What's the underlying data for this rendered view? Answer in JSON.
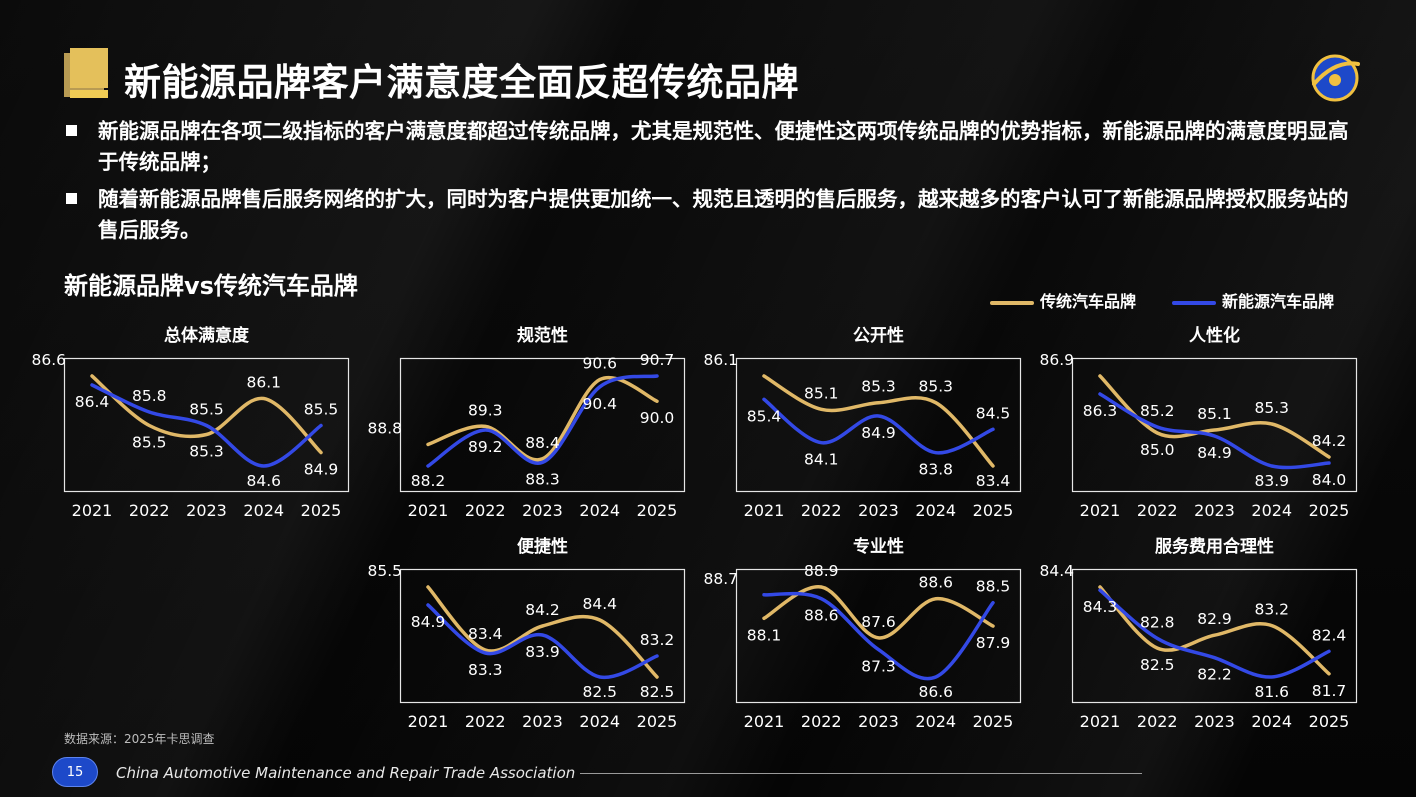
{
  "header": {
    "title": "新能源品牌客户满意度全面反超传统品牌"
  },
  "bullets": [
    "新能源品牌在各项二级指标的客户满意度都超过传统品牌，尤其是规范性、便捷性这两项传统品牌的优势指标，新能源品牌的满意度明显高于传统品牌；",
    "随着新能源品牌售后服务网络的扩大，同时为客户提供更加统一、规范且透明的售后服务，越来越多的客户认可了新能源品牌授权服务站的售后服务。"
  ],
  "subtitle": "新能源品牌vs传统汽车品牌",
  "legend": {
    "traditional": "传统汽车品牌",
    "nev": "新能源汽车品牌"
  },
  "colors": {
    "traditional": "#e0b867",
    "nev": "#3349e6",
    "title_accent": "#e4c05b",
    "page_badge": "#1d49c9"
  },
  "chart_data": [
    {
      "type": "line",
      "title": "总体满意度",
      "categories": [
        "2021",
        "2022",
        "2023",
        "2024",
        "2025"
      ],
      "series": [
        {
          "name": "传统汽车品牌",
          "values": [
            86.6,
            85.5,
            85.3,
            86.1,
            84.9
          ]
        },
        {
          "name": "新能源汽车品牌",
          "values": [
            86.4,
            85.8,
            85.5,
            84.6,
            85.5
          ]
        }
      ]
    },
    {
      "type": "line",
      "title": "规范性",
      "categories": [
        "2021",
        "2022",
        "2023",
        "2024",
        "2025"
      ],
      "series": [
        {
          "name": "传统汽车品牌",
          "values": [
            88.8,
            89.3,
            88.4,
            90.6,
            90.0
          ]
        },
        {
          "name": "新能源汽车品牌",
          "values": [
            88.2,
            89.2,
            88.3,
            90.4,
            90.7
          ]
        }
      ]
    },
    {
      "type": "line",
      "title": "公开性",
      "categories": [
        "2021",
        "2022",
        "2023",
        "2024",
        "2025"
      ],
      "series": [
        {
          "name": "传统汽车品牌",
          "values": [
            86.1,
            85.1,
            85.3,
            85.3,
            83.4
          ]
        },
        {
          "name": "新能源汽车品牌",
          "values": [
            85.4,
            84.1,
            84.9,
            83.8,
            84.5
          ]
        }
      ]
    },
    {
      "type": "line",
      "title": "人性化",
      "categories": [
        "2021",
        "2022",
        "2023",
        "2024",
        "2025"
      ],
      "series": [
        {
          "name": "传统汽车品牌",
          "values": [
            86.9,
            85.0,
            85.1,
            85.3,
            84.2
          ]
        },
        {
          "name": "新能源汽车品牌",
          "values": [
            86.3,
            85.2,
            84.9,
            83.9,
            84.0
          ]
        }
      ]
    },
    {
      "type": "line",
      "title": "便捷性",
      "categories": [
        "2021",
        "2022",
        "2023",
        "2024",
        "2025"
      ],
      "series": [
        {
          "name": "传统汽车品牌",
          "values": [
            85.5,
            83.4,
            84.2,
            84.4,
            82.5
          ]
        },
        {
          "name": "新能源汽车品牌",
          "values": [
            84.9,
            83.3,
            83.9,
            82.5,
            83.2
          ]
        }
      ]
    },
    {
      "type": "line",
      "title": "专业性",
      "categories": [
        "2021",
        "2022",
        "2023",
        "2024",
        "2025"
      ],
      "series": [
        {
          "name": "传统汽车品牌",
          "values": [
            88.1,
            88.9,
            87.6,
            88.6,
            87.9
          ]
        },
        {
          "name": "新能源汽车品牌",
          "values": [
            88.7,
            88.6,
            87.3,
            86.6,
            88.5
          ]
        }
      ]
    },
    {
      "type": "line",
      "title": "服务费用合理性",
      "categories": [
        "2021",
        "2022",
        "2023",
        "2024",
        "2025"
      ],
      "series": [
        {
          "name": "传统汽车品牌",
          "values": [
            84.4,
            82.5,
            82.9,
            83.2,
            81.7
          ]
        },
        {
          "name": "新能源汽车品牌",
          "values": [
            84.3,
            82.8,
            82.2,
            81.6,
            82.4
          ]
        }
      ]
    }
  ],
  "footer": {
    "source": "数据来源：2025年卡思调查",
    "page_number": "15",
    "organization": "China Automotive Maintenance and Repair Trade Association"
  }
}
